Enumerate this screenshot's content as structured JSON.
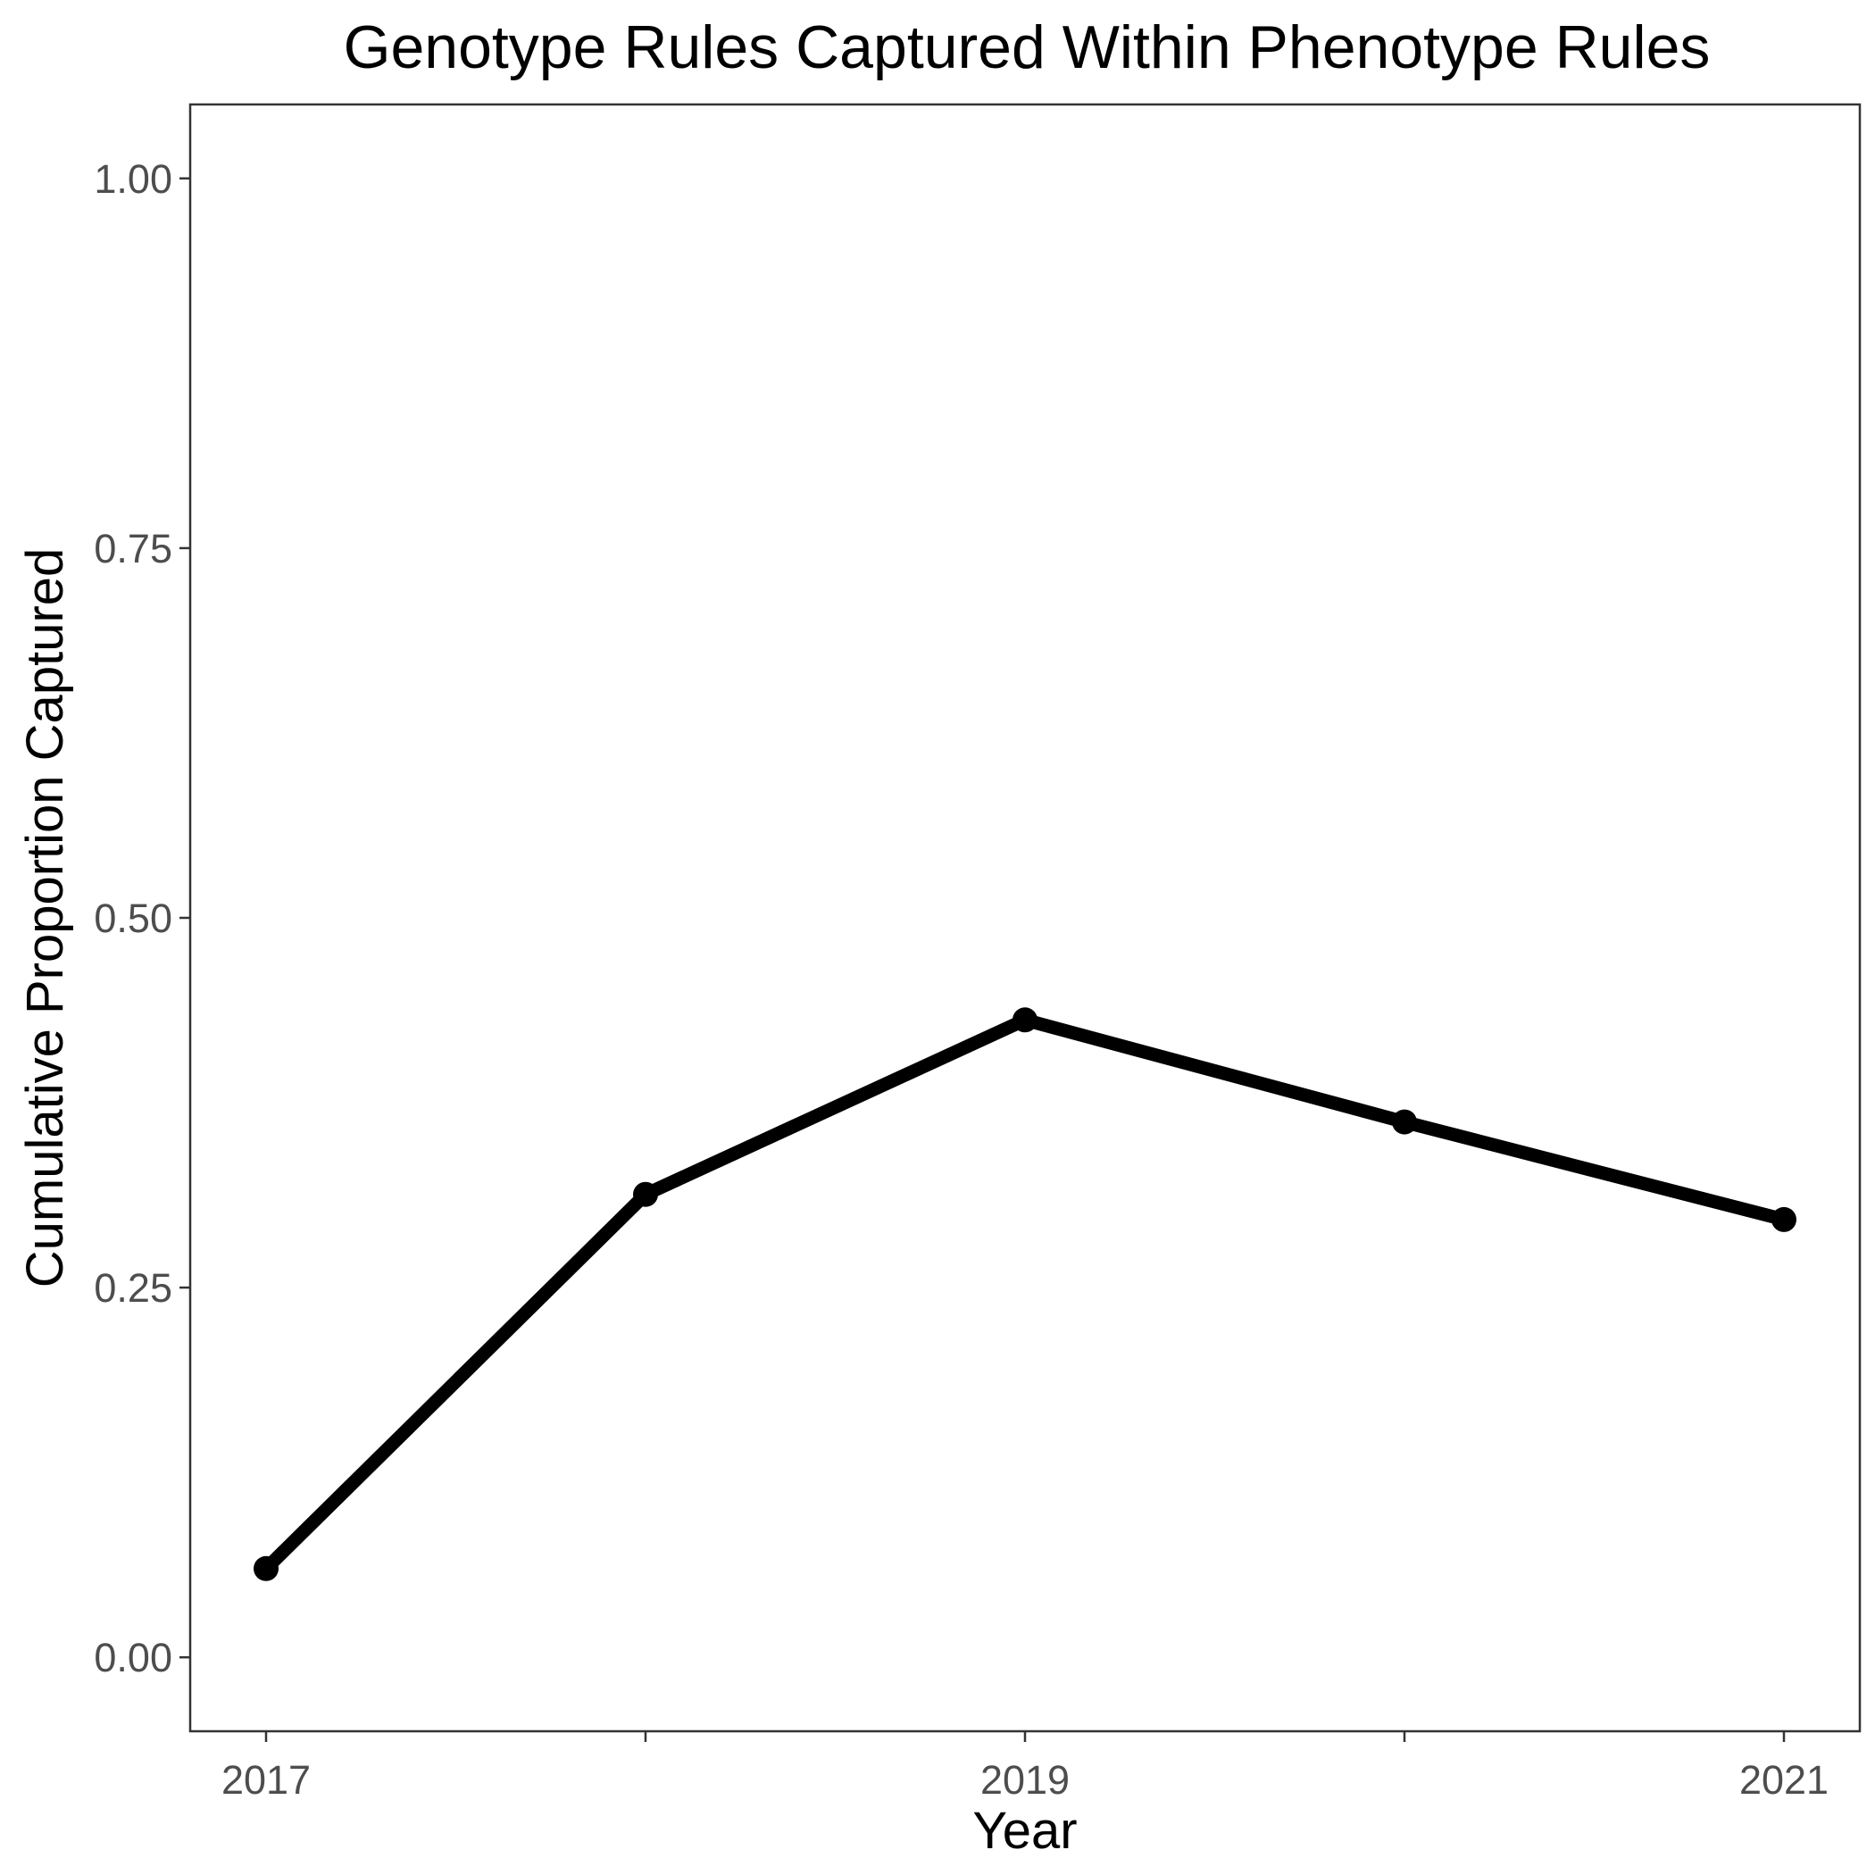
{
  "chart_data": {
    "type": "line",
    "title": "Genotype Rules Captured Within Phenotype Rules",
    "xlabel": "Year",
    "ylabel": "Cumulative Proportion Captured",
    "x": [
      2017,
      2018,
      2019,
      2020,
      2021
    ],
    "series": [
      {
        "values": [
          0.06,
          0.313,
          0.431,
          0.362,
          0.296
        ]
      }
    ],
    "x_ticks": [
      2017,
      2019,
      2021
    ],
    "x_tick_labels": [
      "2017",
      "2019",
      "2021"
    ],
    "y_ticks": [
      0,
      0.25,
      0.5,
      0.75,
      1
    ],
    "y_tick_labels": [
      "0.00",
      "0.25",
      "0.50",
      "0.75",
      "1.00"
    ],
    "xlim": [
      2016.8,
      2021.2
    ],
    "ylim": [
      -0.05,
      1.05
    ],
    "grid": false,
    "legend": "none",
    "line_color": "#000000"
  }
}
